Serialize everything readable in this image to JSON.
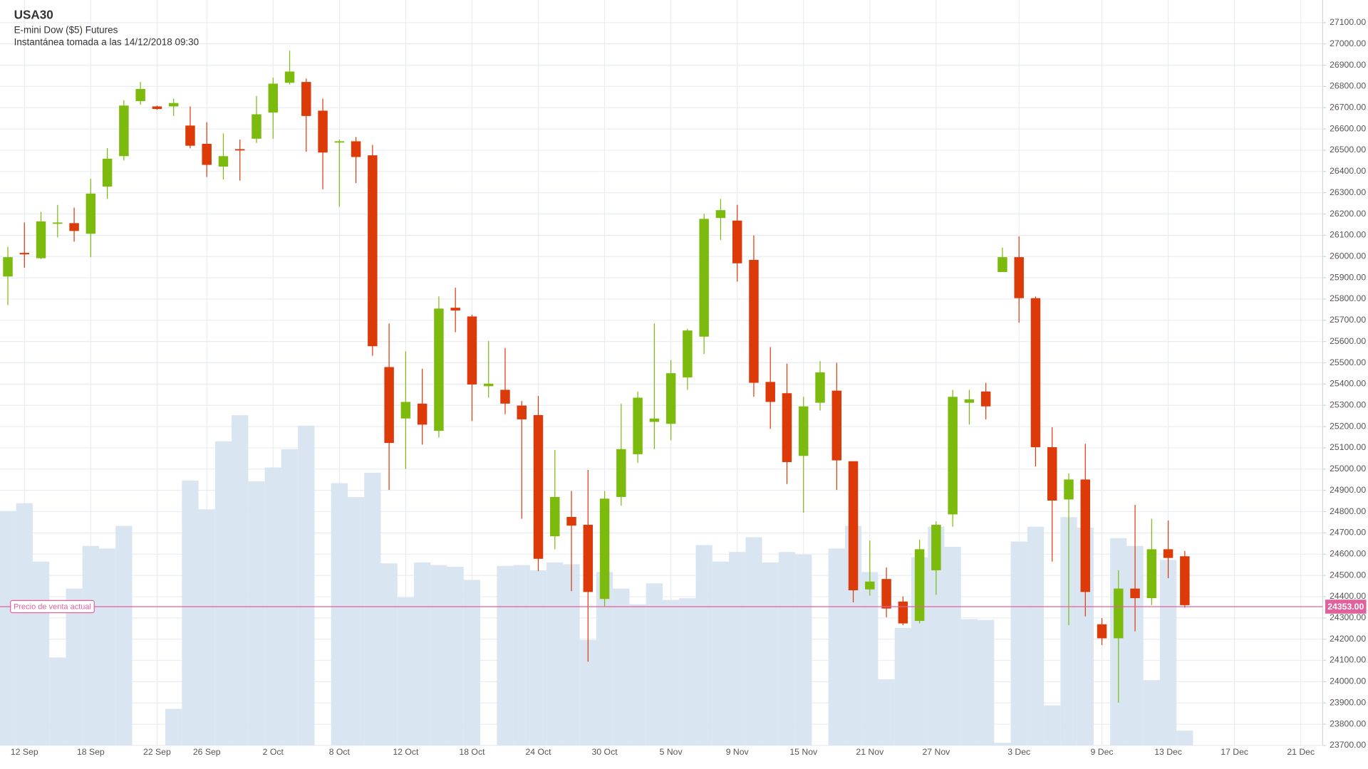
{
  "chart_data": {
    "type": "candlestick",
    "title": "USA30",
    "subtitle": "E-mini Dow ($5) Futures",
    "annotation": "Instantánea tomada a las 14/12/2018 09:30",
    "categories": [
      null,
      "12 Sep",
      null,
      null,
      null,
      "18 Sep",
      null,
      null,
      null,
      "22 Sep",
      null,
      null,
      "26 Sep",
      null,
      null,
      null,
      "2 Oct",
      null,
      null,
      null,
      "8 Oct",
      null,
      null,
      null,
      "12 Oct",
      null,
      null,
      null,
      "18 Oct",
      null,
      null,
      null,
      "24 Oct",
      null,
      null,
      null,
      "30 Oct",
      null,
      null,
      null,
      "5 Nov",
      null,
      null,
      null,
      "9 Nov",
      null,
      null,
      null,
      "15 Nov",
      null,
      null,
      null,
      "21 Nov",
      null,
      null,
      null,
      "27 Nov",
      null,
      null,
      null,
      null,
      "3 Dec",
      null,
      null,
      null,
      null,
      "9 Dec",
      null,
      null,
      null,
      "13 Dec",
      null,
      null,
      null,
      "17 Dec",
      null,
      null,
      null,
      "21 Dec",
      null
    ],
    "open": [
      25906,
      26017,
      25992,
      26155,
      26157,
      26107,
      26329,
      26472,
      26731,
      26706,
      26706,
      26616,
      26530,
      26423,
      26505,
      26554,
      26677,
      26817,
      26821,
      26686,
      26538,
      26542,
      26476,
      25480,
      25238,
      25308,
      25180,
      25759,
      25718,
      25390,
      25373,
      25299,
      25254,
      24684,
      24775,
      24738,
      24389,
      24869,
      25070,
      25222,
      25213,
      25431,
      25623,
      26181,
      26169,
      25984,
      25410,
      25357,
      25062,
      25312,
      25369,
      25037,
      24434,
      24483,
      24377,
      24286,
      24524,
      24787,
      25312,
      25365,
      25927,
      25997,
      25804,
      25103,
      24857,
      24951,
      24270,
      24204,
      24438,
      24393,
      24623,
      24590,
      null,
      null,
      null,
      null,
      null,
      null,
      null,
      null
    ],
    "high": [
      26046,
      26160,
      26210,
      26243,
      26230,
      26366,
      26510,
      26735,
      26821,
      26710,
      26743,
      26706,
      26632,
      26579,
      26550,
      26755,
      26841,
      26968,
      26837,
      26743,
      26550,
      26562,
      26525,
      25685,
      25554,
      25472,
      25812,
      25853,
      25726,
      25603,
      25570,
      25320,
      25344,
      25090,
      24897,
      24996,
      24897,
      25308,
      25365,
      25685,
      25513,
      25660,
      26201,
      26271,
      26243,
      26099,
      25574,
      25496,
      25340,
      25508,
      25500,
      25037,
      24664,
      24537,
      24401,
      24668,
      24754,
      25373,
      25373,
      25406,
      26042,
      26095,
      25812,
      25197,
      24980,
      25119,
      24299,
      24524,
      24832,
      24766,
      24758,
      24615,
      null,
      null,
      null,
      null,
      null,
      null,
      null,
      null
    ],
    "low": [
      25771,
      25947,
      25988,
      26090,
      26070,
      25997,
      26271,
      26452,
      26714,
      26690,
      26661,
      26509,
      26374,
      26362,
      26357,
      26534,
      26554,
      26809,
      26493,
      26316,
      26234,
      26345,
      25533,
      24902,
      25000,
      25115,
      25148,
      25644,
      25226,
      25336,
      25258,
      24766,
      24520,
      24623,
      24426,
      24094,
      24352,
      24828,
      25029,
      25094,
      25135,
      25373,
      25541,
      26078,
      25882,
      25340,
      25189,
      24930,
      24795,
      25275,
      24902,
      24373,
      24405,
      24303,
      24266,
      24274,
      24409,
      24729,
      25209,
      25234,
      25927,
      25689,
      25012,
      24565,
      24266,
      24307,
      24172,
      23901,
      24237,
      24360,
      24487,
      24348,
      null,
      null,
      null,
      null,
      null,
      null,
      null,
      null
    ],
    "close": [
      25997,
      26010,
      26165,
      26160,
      26120,
      26296,
      26460,
      26710,
      26788,
      26694,
      26722,
      26521,
      26431,
      26472,
      26501,
      26669,
      26813,
      26870,
      26661,
      26489,
      26542,
      26468,
      25578,
      25123,
      25316,
      25209,
      25755,
      25746,
      25398,
      25402,
      25308,
      25234,
      24578,
      24869,
      24734,
      24422,
      24861,
      25094,
      25336,
      25238,
      25451,
      25652,
      26177,
      26218,
      25968,
      25406,
      25316,
      25033,
      25295,
      25455,
      25041,
      24430,
      24471,
      24344,
      24274,
      24623,
      24738,
      25340,
      25328,
      25295,
      25997,
      25804,
      25103,
      24852,
      24951,
      24422,
      24204,
      24438,
      24393,
      24623,
      24582,
      24360,
      null,
      null,
      null,
      null,
      null,
      null,
      null,
      null
    ],
    "volume": [
      269,
      278,
      211,
      101,
      180,
      229,
      226,
      252,
      0,
      0,
      42,
      304,
      271,
      349,
      379,
      303,
      319,
      340,
      367,
      0,
      301,
      285,
      313,
      209,
      170,
      210,
      207,
      205,
      190,
      0,
      206,
      207,
      201,
      210,
      208,
      121,
      199,
      180,
      162,
      186,
      167,
      169,
      230,
      211,
      222,
      239,
      210,
      222,
      219,
      0,
      226,
      252,
      199,
      76,
      135,
      216,
      251,
      228,
      145,
      144,
      3,
      234,
      251,
      46,
      262,
      250,
      0,
      238,
      229,
      75,
      213,
      17,
      null,
      null,
      null,
      null,
      null,
      null,
      null,
      null
    ],
    "up_color": "#7cbb0e",
    "down_color": "#dd3a0a",
    "volume_color": "#d9e5f1",
    "ylim": [
      23700,
      27200
    ],
    "yticks": [
      {
        "value": 23700,
        "label": "23700.00"
      },
      {
        "value": 23800,
        "label": "23800.00"
      },
      {
        "value": 23900,
        "label": "23900.00"
      },
      {
        "value": 24000,
        "label": "24000.00"
      },
      {
        "value": 24100,
        "label": "24100.00"
      },
      {
        "value": 24200,
        "label": "24200.00"
      },
      {
        "value": 24300,
        "label": "24300.00"
      },
      {
        "value": 24400,
        "label": "24400.00"
      },
      {
        "value": 24500,
        "label": "24500.00"
      },
      {
        "value": 24600,
        "label": "24600.00"
      },
      {
        "value": 24700,
        "label": "24700.00"
      },
      {
        "value": 24800,
        "label": "24800.00"
      },
      {
        "value": 24900,
        "label": "24900.00"
      },
      {
        "value": 25000,
        "label": "25000.00"
      },
      {
        "value": 25100,
        "label": "25100.00"
      },
      {
        "value": 25200,
        "label": "25200.00"
      },
      {
        "value": 25300,
        "label": "25300.00"
      },
      {
        "value": 25400,
        "label": "25400.00"
      },
      {
        "value": 25500,
        "label": "25500.00"
      },
      {
        "value": 25600,
        "label": "25600.00"
      },
      {
        "value": 25700,
        "label": "25700.00"
      },
      {
        "value": 25800,
        "label": "25800.00"
      },
      {
        "value": 25900,
        "label": "25900.00"
      },
      {
        "value": 26000,
        "label": "26000.00"
      },
      {
        "value": 26100,
        "label": "26100.00"
      },
      {
        "value": 26200,
        "label": "26200.00"
      },
      {
        "value": 26300,
        "label": "26300.00"
      },
      {
        "value": 26400,
        "label": "26400.00"
      },
      {
        "value": 26500,
        "label": "26500.00"
      },
      {
        "value": 26600,
        "label": "26600.00"
      },
      {
        "value": 26700,
        "label": "26700.00"
      },
      {
        "value": 26800,
        "label": "26800.00"
      },
      {
        "value": 26900,
        "label": "26900.00"
      },
      {
        "value": 27000,
        "label": "27000.00"
      },
      {
        "value": 27100,
        "label": "27100.00"
      }
    ],
    "grid": true,
    "current_price": {
      "name": "Precio de venta actual",
      "value": 24353,
      "label": "24353.00",
      "color": "#e0619c"
    }
  }
}
